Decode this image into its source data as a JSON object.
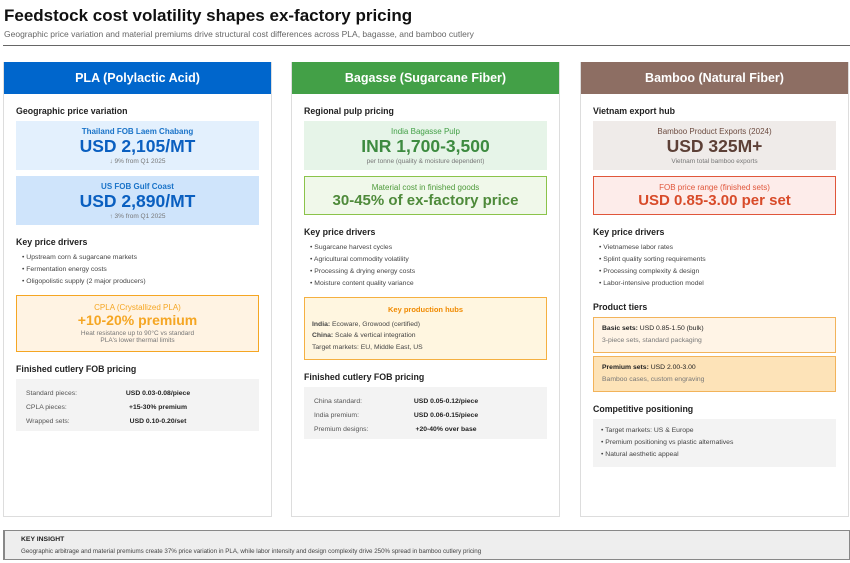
{
  "header": {
    "title": "Feedstock cost volatility shapes ex-factory pricing",
    "subtitle": "Geographic price variation and material premiums drive structural cost differences across PLA, bagasse, and bamboo cutlery"
  },
  "colors": {
    "pla": "#0066cc",
    "bagasse": "#43a047",
    "bamboo": "#8d6e63",
    "orange": "#f5a623",
    "red": "#e0563a"
  },
  "pla": {
    "title": "PLA (Polylactic Acid)",
    "geo_heading": "Geographic price variation",
    "thailand": {
      "label": "Thailand FOB Laem Chabang",
      "value": "USD 2,105/MT",
      "note": "↓ 9% from Q1 2025"
    },
    "us": {
      "label": "US FOB Gulf Coast",
      "value": "USD 2,890/MT",
      "note": "↑ 3% from Q1 2025"
    },
    "drivers_heading": "Key price drivers",
    "drivers": [
      "Upstream corn & sugarcane markets",
      "Fermentation energy costs",
      "Oligopolistic supply (2 major producers)"
    ],
    "cpla": {
      "label": "CPLA (Crystallized PLA)",
      "value": "+10-20% premium",
      "note1": "Heat resistance up to 90°C vs standard",
      "note2": "PLA's lower thermal limits"
    },
    "fob_heading": "Finished cutlery FOB pricing",
    "fob": [
      {
        "k": "Standard pieces:",
        "v": "USD 0.03-0.08/piece"
      },
      {
        "k": "CPLA pieces:",
        "v": "+15-30% premium"
      },
      {
        "k": "Wrapped sets:",
        "v": "USD 0.10-0.20/set"
      }
    ]
  },
  "bagasse": {
    "title": "Bagasse (Sugarcane Fiber)",
    "pulp_heading": "Regional pulp pricing",
    "india": {
      "label": "India Bagasse Pulp",
      "value": "INR 1,700-3,500",
      "note": "per tonne (quality & moisture dependent)"
    },
    "material": {
      "label": "Material cost in finished goods",
      "value": "30-45% of ex-factory price"
    },
    "drivers_heading": "Key price drivers",
    "drivers": [
      "Sugarcane harvest cycles",
      "Agricultural commodity volatility",
      "Processing & drying energy costs",
      "Moisture content quality variance"
    ],
    "hubs": {
      "title": "Key production hubs",
      "india_k": "India:",
      "india_v": " Ecoware, Growood (certified)",
      "china_k": "China:",
      "china_v": " Scale & vertical integration",
      "target": "Target markets: EU, Middle East, US"
    },
    "fob_heading": "Finished cutlery FOB pricing",
    "fob": [
      {
        "k": "China standard:",
        "v": "USD 0.05-0.12/piece"
      },
      {
        "k": "India premium:",
        "v": "USD 0.06-0.15/piece"
      },
      {
        "k": "Premium designs:",
        "v": "+20-40% over base"
      }
    ]
  },
  "bamboo": {
    "title": "Bamboo (Natural Fiber)",
    "hub_heading": "Vietnam export hub",
    "exports": {
      "label": "Bamboo Product Exports (2024)",
      "value": "USD 325M+",
      "note": "Vietnam total bamboo exports"
    },
    "fob": {
      "label": "FOB price range (finished sets)",
      "value": "USD 0.85-3.00 per set"
    },
    "drivers_heading": "Key price drivers",
    "drivers": [
      "Vietnamese labor rates",
      "Splint quality sorting requirements",
      "Processing complexity & design",
      "Labor-intensive production model"
    ],
    "tiers_heading": "Product tiers",
    "tiers": [
      {
        "k": "Basic sets:",
        "v": " USD 0.85-1.50 (bulk)",
        "sub": "3-piece sets, standard packaging"
      },
      {
        "k": "Premium sets:",
        "v": " USD 2.00-3.00",
        "sub": "Bamboo cases, custom engraving"
      }
    ],
    "comp_heading": "Competitive positioning",
    "comp": [
      "Target markets: US & Europe",
      "Premium positioning vs plastic alternatives",
      "Natural aesthetic appeal"
    ]
  },
  "insight": {
    "heading": "KEY INSIGHT",
    "text": "Geographic arbitrage and material premiums create 37% price variation in PLA, while labor intensity and design complexity drive 250% spread in bamboo cutlery pricing"
  }
}
